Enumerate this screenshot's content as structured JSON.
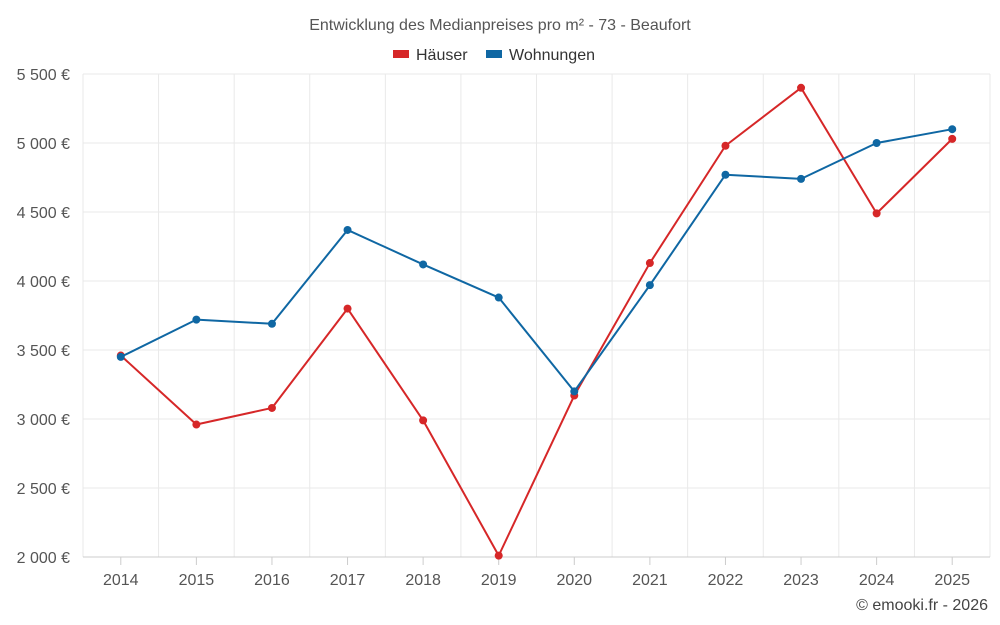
{
  "chart_data": {
    "type": "line",
    "title": "Entwicklung des Medianpreises pro m² - 73 - Beaufort",
    "categories": [
      "2014",
      "2015",
      "2016",
      "2017",
      "2018",
      "2019",
      "2020",
      "2021",
      "2022",
      "2023",
      "2024",
      "2025"
    ],
    "ylim": [
      2000,
      5500
    ],
    "yticks": [
      2000,
      2500,
      3000,
      3500,
      4000,
      4500,
      5000,
      5500
    ],
    "ytick_labels": [
      "2 000 €",
      "2 500 €",
      "3 000 €",
      "3 500 €",
      "4 000 €",
      "4 500 €",
      "5 000 €",
      "5 500 €"
    ],
    "legend_position": "top-center",
    "series": [
      {
        "name": "Häuser",
        "color": "#d62728",
        "values": [
          3460,
          2960,
          3080,
          3800,
          2990,
          2010,
          3170,
          4130,
          4980,
          5400,
          4490,
          5030
        ]
      },
      {
        "name": "Wohnungen",
        "color": "#0f67a3",
        "values": [
          3450,
          3720,
          3690,
          4370,
          4120,
          3880,
          3200,
          3970,
          4770,
          4740,
          5000,
          5100
        ]
      }
    ],
    "credit": "© emooki.fr - 2026"
  }
}
